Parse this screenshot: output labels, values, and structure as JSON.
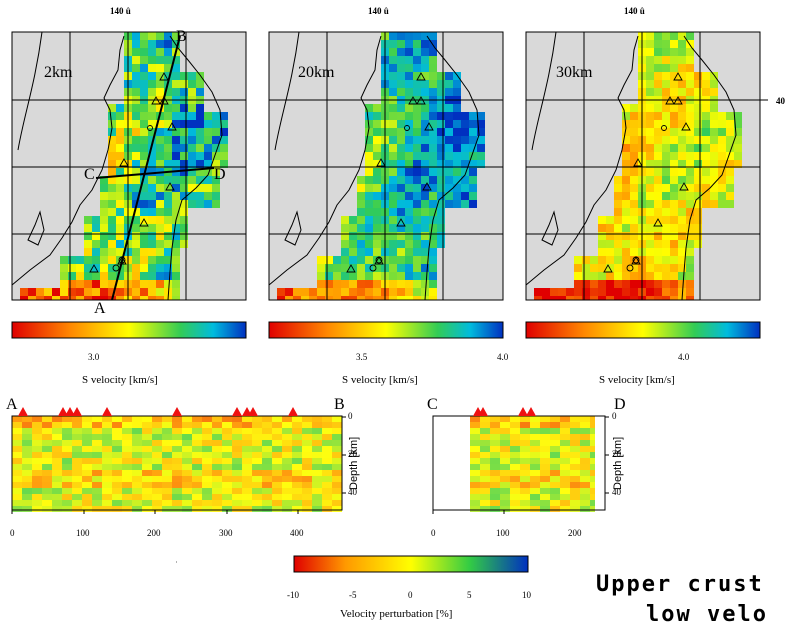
{
  "maps": [
    {
      "depth_label": "2km",
      "top_lon": "140 û",
      "cbar_tick": "3.0",
      "cbar_title": "S velocity [km/s]"
    },
    {
      "depth_label": "20km",
      "top_lon": "140 û",
      "cbar_ticks": [
        "3.5",
        "4.0"
      ],
      "cbar_title": "S velocity [km/s]"
    },
    {
      "depth_label": "30km",
      "top_lon": "140 û",
      "cbar_tick": "4.0",
      "cbar_title": "S velocity [km/s]"
    }
  ],
  "lat_label": "40",
  "profile_points": {
    "a": "A",
    "b": "B",
    "c": "C",
    "d": "D"
  },
  "cross_sections": [
    {
      "start": "A",
      "end": "B",
      "xticks": [
        "0",
        "100",
        "200",
        "300",
        "400"
      ],
      "yticks": [
        "0",
        "20",
        "40"
      ],
      "ylabel": "Depth [km]"
    },
    {
      "start": "C",
      "end": "D",
      "xticks": [
        "0",
        "100",
        "200"
      ],
      "yticks": [
        "0",
        "20",
        "40"
      ],
      "ylabel": "Depth [km]"
    }
  ],
  "perturbation_bar": {
    "ticks": [
      "-10",
      "-5",
      "0",
      "5",
      "10"
    ],
    "title": "Velocity perturbation [%]"
  },
  "caption": {
    "line1": "Upper crust",
    "line2": "low velo"
  },
  "colors": {
    "land_gray": "#d9d9d9",
    "volcano_red": "#ee1111",
    "scale_low": "#e00000",
    "scale_mid": "#ffff00",
    "scale_high": "#0030c0"
  },
  "chart_data": [
    {
      "type": "heatmap",
      "title": "2km",
      "xlabel": "",
      "ylabel": "",
      "colorbar": "S velocity [km/s]",
      "colorbar_ticks": [
        3.0
      ]
    },
    {
      "type": "heatmap",
      "title": "20km",
      "xlabel": "",
      "ylabel": "",
      "colorbar": "S velocity [km/s]",
      "colorbar_ticks": [
        3.5,
        4.0
      ]
    },
    {
      "type": "heatmap",
      "title": "30km",
      "xlabel": "",
      "ylabel": "",
      "colorbar": "S velocity [km/s]",
      "colorbar_ticks": [
        4.0
      ]
    },
    {
      "type": "heatmap",
      "title": "",
      "xlabel": "",
      "ylabel": "Depth [km]",
      "xlim": [
        0,
        460
      ],
      "ylim": [
        50,
        0
      ],
      "colorbar": "Velocity perturbation [%]",
      "colorbar_range": [
        -10,
        10
      ]
    },
    {
      "type": "heatmap",
      "title": "",
      "xlabel": "",
      "ylabel": "Depth [km]",
      "xlim": [
        0,
        240
      ],
      "ylim": [
        50,
        0
      ],
      "colorbar": "Velocity perturbation [%]",
      "colorbar_range": [
        -10,
        10
      ]
    }
  ]
}
